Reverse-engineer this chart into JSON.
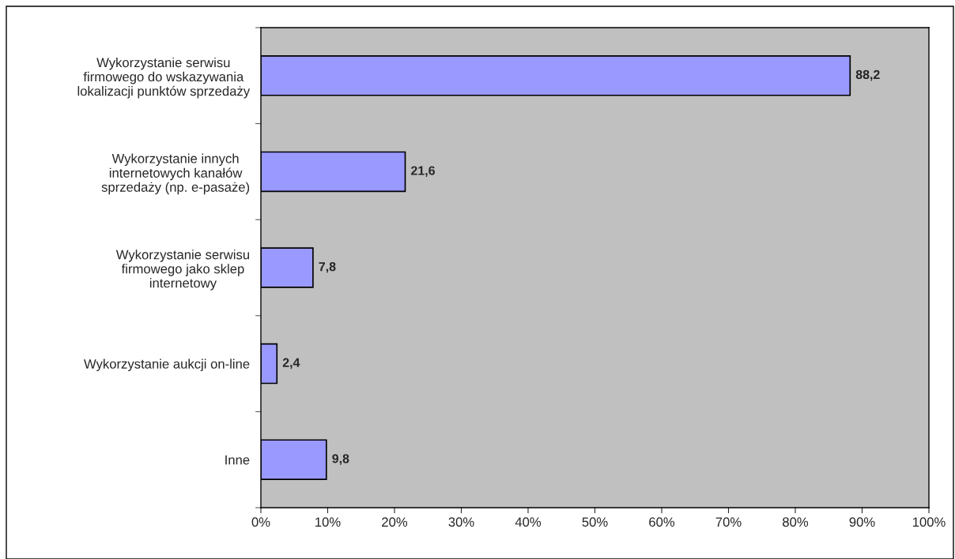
{
  "chart_data": {
    "type": "bar",
    "orientation": "horizontal",
    "categories": [
      "Wykorzystanie serwisu\nfirmowego do wskazywania\nlokalizacji punktów sprzedaży",
      "Wykorzystanie innych\ninternetowych kanałów\nsprzedaży (np. e-pasaże)",
      "Wykorzystanie serwisu\nfirmowego jako sklep\ninternetowy",
      "Wykorzystanie aukcji on-line",
      "Inne"
    ],
    "values": [
      88.2,
      21.6,
      7.8,
      2.4,
      9.8
    ],
    "value_labels": [
      "88,2",
      "21,6",
      "7,8",
      "2,4",
      "9,8"
    ],
    "color": "#9999ff",
    "xlim": [
      0,
      100
    ],
    "xticks": [
      {
        "value": 0,
        "label": "0%"
      },
      {
        "value": 10,
        "label": "10%"
      },
      {
        "value": 20,
        "label": "20%"
      },
      {
        "value": 30,
        "label": "30%"
      },
      {
        "value": 40,
        "label": "40%"
      },
      {
        "value": 50,
        "label": "50%"
      },
      {
        "value": 60,
        "label": "60%"
      },
      {
        "value": 70,
        "label": "70%"
      },
      {
        "value": 80,
        "label": "80%"
      },
      {
        "value": 90,
        "label": "90%"
      },
      {
        "value": 100,
        "label": "100%"
      }
    ],
    "grid": false,
    "legend": false
  }
}
